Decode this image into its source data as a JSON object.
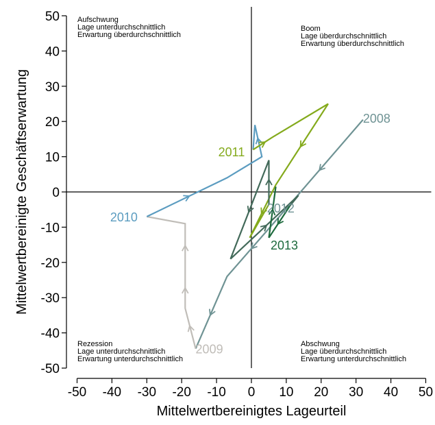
{
  "chart_data": {
    "type": "line",
    "xlabel": "Mittelwertbereinigtes Lageurteil",
    "ylabel": "Mittelwertbereinigte Geschäftserwartung",
    "xlim": [
      -50,
      50
    ],
    "ylim": [
      -50,
      50
    ],
    "xticks": [
      -50,
      -40,
      -30,
      -20,
      -10,
      0,
      10,
      20,
      30,
      40,
      50
    ],
    "yticks": [
      -50,
      -40,
      -30,
      -20,
      -10,
      0,
      10,
      20,
      30,
      40,
      50
    ],
    "xtick_labels": [
      "-50",
      "-40",
      "-30",
      "-20",
      "-10",
      "0",
      "10",
      "20",
      "30",
      "40",
      "50"
    ],
    "ytick_labels": [
      "-50",
      "-40",
      "-30",
      "-20",
      "-10",
      "0",
      "10",
      "20",
      "30",
      "40",
      "50"
    ],
    "grid": false,
    "reference_lines": {
      "x": 0,
      "y": 0
    },
    "quadrants": [
      {
        "name": "top-left",
        "lines": [
          "Aufschwung",
          "Lage unterdurchschnittlich",
          "Erwartung überdurchschnittlich"
        ]
      },
      {
        "name": "top-right",
        "lines": [
          "Boom",
          "Lage überdurchschnittlich",
          "Erwartung überdurchschnittlich"
        ]
      },
      {
        "name": "bottom-left",
        "lines": [
          "Rezession",
          "Lage unterdurchschnittlich",
          "Erwartung unterdurchschnittlich"
        ]
      },
      {
        "name": "bottom-right",
        "lines": [
          "Abschwung",
          "Lage überdurchschnittlich",
          "Erwartung unterdurchschnittlich"
        ]
      }
    ],
    "series": [
      {
        "name": "2008",
        "color": "#6f9394",
        "points": [
          [
            32,
            20.5
          ],
          [
            8,
            -7
          ],
          [
            -7,
            -24
          ],
          [
            -16,
            -44.5
          ]
        ],
        "arrow_segments": [
          0,
          1,
          2
        ]
      },
      {
        "name": "2009",
        "color": "#c0bdb8",
        "points": [
          [
            -16,
            -44.5
          ],
          [
            -19,
            -33
          ],
          [
            -19,
            -23
          ],
          [
            -19,
            -9
          ],
          [
            -30,
            -7
          ]
        ],
        "arrow_segments": [
          0,
          1,
          2
        ]
      },
      {
        "name": "2010",
        "color": "#5b9cc0",
        "points": [
          [
            -30,
            -7
          ],
          [
            -7,
            4
          ],
          [
            3,
            10
          ],
          [
            1,
            19
          ],
          [
            0.5,
            12
          ]
        ],
        "arrow_segments": [
          0,
          2
        ]
      },
      {
        "name": "2011",
        "color": "#84aa1c",
        "points": [
          [
            0.5,
            12
          ],
          [
            6,
            15.5
          ],
          [
            22,
            25
          ],
          [
            7,
            2
          ],
          [
            -0.5,
            -13
          ],
          [
            5,
            -3.5
          ]
        ],
        "arrow_segments": [
          0,
          2,
          3
        ]
      },
      {
        "name": "2012",
        "color": "#436a5a",
        "points": [
          [
            5,
            -3.5
          ],
          [
            5,
            9
          ],
          [
            -6,
            -19
          ],
          [
            13.5,
            -1
          ],
          [
            11,
            -4
          ]
        ],
        "arrow_segments": [
          0,
          1,
          2
        ]
      },
      {
        "name": "2013",
        "color": "#1d6a3d",
        "points": [
          [
            11,
            -4
          ],
          [
            5,
            -13
          ],
          [
            7,
            1.5
          ],
          [
            6.5,
            -2
          ]
        ],
        "arrow_segments": [
          0,
          1
        ]
      }
    ],
    "series_labels": [
      {
        "text": "2008",
        "x": 32,
        "y": 21,
        "color": "#6f9394"
      },
      {
        "text": "2009",
        "x": -16,
        "y": -44.5,
        "color": "#c0bdb8"
      },
      {
        "text": "2010",
        "x": -40.5,
        "y": -7,
        "color": "#5b9cc0"
      },
      {
        "text": "2011",
        "x": -9.5,
        "y": 11.5,
        "color": "#84aa1c"
      },
      {
        "text": "2012",
        "x": 4.5,
        "y": -4.5,
        "color": "#6f9394"
      },
      {
        "text": "2013",
        "x": 5.5,
        "y": -15,
        "color": "#1d6a3d"
      }
    ]
  }
}
